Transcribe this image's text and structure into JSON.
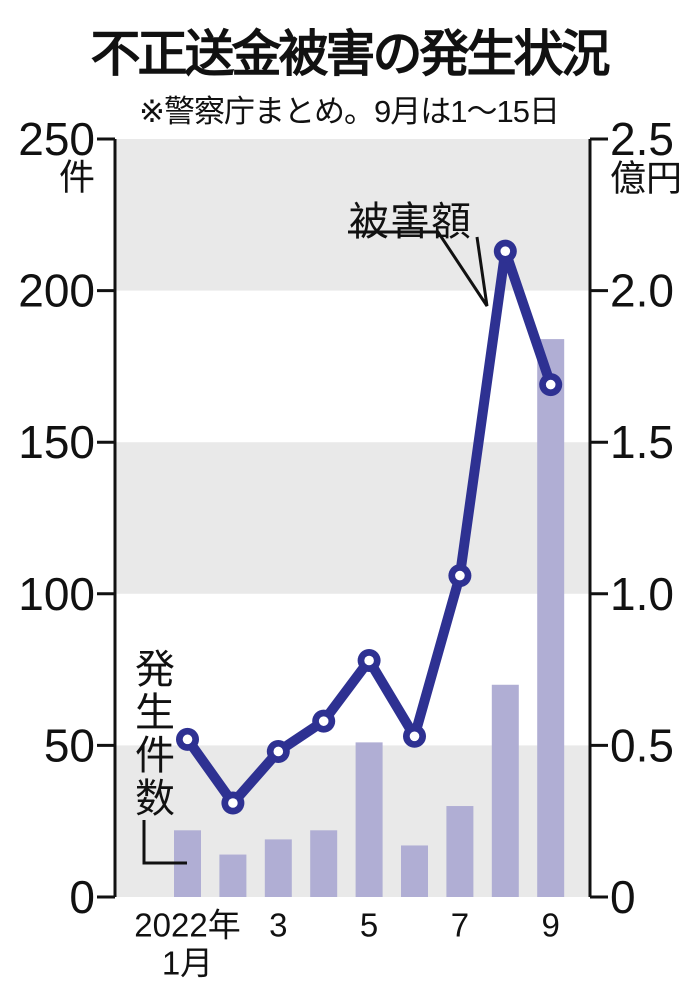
{
  "header": {
    "title": "不正送金被害の発生状況",
    "subtitle": "※警察庁まとめ。9月は1～15日"
  },
  "annotations": {
    "line_series_label": "被害額",
    "bar_series_label": "発生件数"
  },
  "left_axis": {
    "unit": "件",
    "tick_labels": [
      "250",
      "200",
      "150",
      "100",
      "50",
      "0"
    ],
    "max": 250
  },
  "right_axis": {
    "unit": "億円",
    "tick_labels": [
      "2.5",
      "2.0",
      "1.5",
      "1.0",
      "0.5",
      "0"
    ],
    "max": 2.5
  },
  "x_axis": {
    "labels": [
      {
        "text": "2022年",
        "subtext": "1月",
        "month": 1
      },
      {
        "text": "3",
        "month": 3
      },
      {
        "text": "5",
        "month": 5
      },
      {
        "text": "7",
        "month": 7
      },
      {
        "text": "9",
        "month": 9
      }
    ]
  },
  "chart_data": {
    "type": "bar",
    "title": "不正送金被害の発生状況",
    "note": "※警察庁まとめ。9月は1～15日",
    "categories": [
      "1月",
      "2月",
      "3月",
      "4月",
      "5月",
      "6月",
      "7月",
      "8月",
      "9月"
    ],
    "series": [
      {
        "name": "発生件数",
        "type": "bar",
        "axis": "left",
        "unit": "件",
        "values": [
          22,
          14,
          19,
          22,
          51,
          17,
          30,
          70,
          184
        ]
      },
      {
        "name": "被害額",
        "type": "line",
        "axis": "right",
        "unit": "億円",
        "values": [
          0.52,
          0.31,
          0.48,
          0.58,
          0.78,
          0.53,
          1.06,
          2.13,
          1.69
        ]
      }
    ],
    "left_ylim": [
      0,
      250
    ],
    "right_ylim": [
      0,
      2.5
    ],
    "grid": "alternating-bands",
    "legend_position": "annotated-on-chart"
  },
  "colors": {
    "bar": "#b0aed4",
    "line": "#2e3192",
    "band": "#e9e9e9",
    "text": "#111111",
    "marker_center": "#ffffff"
  }
}
